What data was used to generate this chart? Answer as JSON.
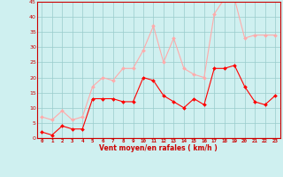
{
  "hours": [
    0,
    1,
    2,
    3,
    4,
    5,
    6,
    7,
    8,
    9,
    10,
    11,
    12,
    13,
    14,
    15,
    16,
    17,
    18,
    19,
    20,
    21,
    22,
    23
  ],
  "vent_moyen": [
    2,
    1,
    4,
    3,
    3,
    13,
    13,
    13,
    12,
    12,
    20,
    19,
    14,
    12,
    10,
    13,
    11,
    23,
    23,
    24,
    17,
    12,
    11,
    14
  ],
  "vent_rafales": [
    7,
    6,
    9,
    6,
    7,
    17,
    20,
    19,
    23,
    23,
    29,
    37,
    25,
    33,
    23,
    21,
    20,
    41,
    46,
    46,
    33,
    34,
    34,
    34
  ],
  "color_moyen": "#ff0000",
  "color_rafales": "#ffaaaa",
  "bg_color": "#cff0f0",
  "grid_color": "#99cccc",
  "xlabel": "Vent moyen/en rafales ( km/h )",
  "xlabel_color": "#cc0000",
  "tick_color": "#cc0000",
  "ylim": [
    0,
    45
  ],
  "yticks": [
    0,
    5,
    10,
    15,
    20,
    25,
    30,
    35,
    40,
    45
  ],
  "xlim_left": -0.5,
  "xlim_right": 23.5
}
